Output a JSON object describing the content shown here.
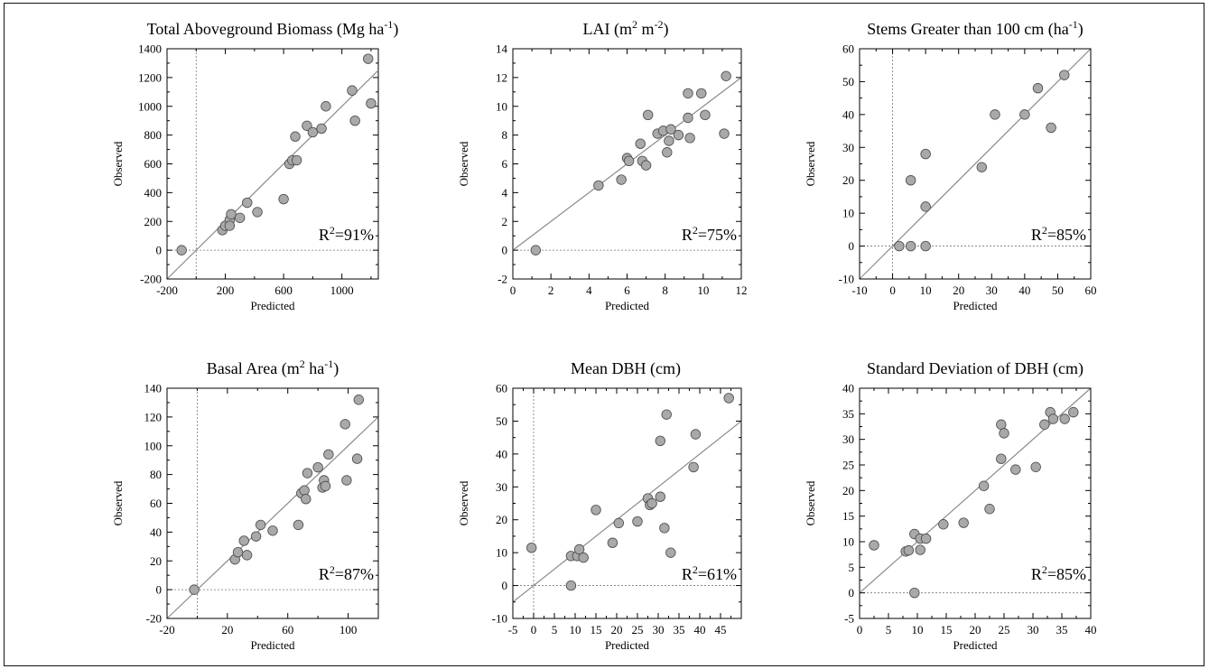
{
  "chart_data": [
    {
      "type": "scatter",
      "title": "Total Aboveground Biomass (Mg ha-1)",
      "title_main": "Total Aboveground Biomass (Mg ha",
      "title_sup": "-1",
      "title_tail": ")",
      "xlabel": "Predicted",
      "ylabel": "Observed",
      "xlim": [
        -200,
        1250
      ],
      "ylim": [
        -200,
        1400
      ],
      "xticks": [
        -200,
        200,
        600,
        1000
      ],
      "yticks": [
        -200,
        0,
        200,
        400,
        600,
        800,
        1000,
        1200,
        1400
      ],
      "r2_prefix": "R",
      "r2_sup": "2",
      "r2_value": "=91%",
      "x": [
        -100,
        180,
        200,
        230,
        240,
        230,
        300,
        350,
        420,
        600,
        640,
        660,
        680,
        690,
        760,
        800,
        860,
        890,
        1070,
        1090,
        1180,
        1200
      ],
      "y": [
        0,
        140,
        170,
        210,
        250,
        170,
        225,
        330,
        265,
        355,
        600,
        625,
        790,
        625,
        865,
        820,
        845,
        1000,
        1110,
        900,
        1330,
        1020
      ]
    },
    {
      "type": "scatter",
      "title": "LAI (m2 m-2)",
      "title_main": "LAI (m",
      "title_sup": "2",
      "title_mid": " m",
      "title_sup2": "-2",
      "title_tail": ")",
      "xlabel": "Predicted",
      "ylabel": "Observed",
      "xlim": [
        0,
        12
      ],
      "ylim": [
        -2,
        14
      ],
      "xticks": [
        0,
        2,
        4,
        6,
        8,
        10,
        12
      ],
      "yticks": [
        -2,
        0,
        2,
        4,
        6,
        8,
        10,
        12,
        14
      ],
      "r2_prefix": "R",
      "r2_sup": "2",
      "r2_value": "=75%",
      "x": [
        1.2,
        4.5,
        5.7,
        6.0,
        6.1,
        6.7,
        6.8,
        7.0,
        7.1,
        7.6,
        7.9,
        8.1,
        8.2,
        8.3,
        8.7,
        9.2,
        9.2,
        9.3,
        9.9,
        10.1,
        11.1,
        11.2
      ],
      "y": [
        0.0,
        4.5,
        4.9,
        6.4,
        6.2,
        7.4,
        6.2,
        5.9,
        9.4,
        8.1,
        8.3,
        6.8,
        7.6,
        8.4,
        8.0,
        9.2,
        10.9,
        7.8,
        10.9,
        9.4,
        8.1,
        12.1
      ]
    },
    {
      "type": "scatter",
      "title": "Stems Greater than 100 cm (ha-1)",
      "title_main": "Stems Greater than 100 cm (ha",
      "title_sup": "-1",
      "title_tail": ")",
      "xlabel": "Predicted",
      "ylabel": "Observed",
      "xlim": [
        -10,
        60
      ],
      "ylim": [
        -10,
        60
      ],
      "xticks": [
        -10,
        0,
        10,
        20,
        30,
        40,
        50,
        60
      ],
      "yticks": [
        -10,
        0,
        10,
        20,
        30,
        40,
        50,
        60
      ],
      "r2_prefix": "R",
      "r2_sup": "2",
      "r2_value": "=85%",
      "x": [
        2,
        5.5,
        5.5,
        10,
        10,
        10,
        27,
        31,
        40,
        44,
        48,
        52
      ],
      "y": [
        0,
        0,
        20,
        28,
        12,
        0,
        24,
        40,
        40,
        48,
        36,
        52
      ]
    },
    {
      "type": "scatter",
      "title": "Basal Area (m2 ha-1)",
      "title_main": "Basal Area  (m",
      "title_sup": "2",
      "title_mid": " ha",
      "title_sup2": "-1",
      "title_tail": ")",
      "xlabel": "Predicted",
      "ylabel": "Observed",
      "xlim": [
        -20,
        120
      ],
      "ylim": [
        -20,
        140
      ],
      "xticks": [
        -20,
        20,
        60,
        100
      ],
      "yticks": [
        -20,
        0,
        20,
        40,
        60,
        80,
        100,
        120,
        140
      ],
      "r2_prefix": "R",
      "r2_sup": "2",
      "r2_value": "=87%",
      "x": [
        -2,
        25,
        27,
        31,
        33,
        39,
        42,
        50,
        67,
        69,
        71,
        72,
        73,
        80,
        83,
        84,
        85,
        87,
        98,
        99,
        106,
        107
      ],
      "y": [
        0,
        21,
        26,
        34,
        24,
        37,
        45,
        41,
        45,
        67,
        69,
        63,
        81,
        85,
        71,
        76,
        72,
        94,
        115,
        76,
        91,
        132
      ]
    },
    {
      "type": "scatter",
      "title": "Mean DBH (cm)",
      "xlabel": "Predicted",
      "ylabel": "Observed",
      "xlim": [
        -5,
        50
      ],
      "ylim": [
        -10,
        60
      ],
      "xticks": [
        -5,
        0,
        5,
        10,
        15,
        20,
        25,
        30,
        35,
        40,
        45
      ],
      "yticks": [
        -10,
        0,
        10,
        20,
        30,
        40,
        50,
        60
      ],
      "r2_prefix": "R",
      "r2_sup": "2",
      "r2_value": "=61%",
      "x": [
        -0.5,
        9,
        9,
        10.5,
        11,
        12,
        15,
        19,
        20.5,
        25,
        27.5,
        28,
        28.5,
        30.5,
        30.5,
        31.5,
        32,
        33,
        38.5,
        39,
        47
      ],
      "y": [
        11.5,
        9,
        0,
        9,
        11,
        8.5,
        23,
        13,
        19,
        19.5,
        26.5,
        24.5,
        25,
        44,
        27,
        17.5,
        52,
        10,
        36,
        46,
        57
      ]
    },
    {
      "type": "scatter",
      "title": "Standard Deviation of DBH (cm)",
      "xlabel": "Predicted",
      "ylabel": "Observed",
      "xlim": [
        0,
        40
      ],
      "ylim": [
        -5,
        40
      ],
      "xticks": [
        0,
        5,
        10,
        15,
        20,
        25,
        30,
        35,
        40
      ],
      "yticks": [
        -5,
        0,
        5,
        10,
        15,
        20,
        25,
        30,
        35,
        40
      ],
      "r2_prefix": "R",
      "r2_sup": "2",
      "r2_value": "=85%",
      "x": [
        2.5,
        8,
        8.5,
        9.5,
        9.5,
        10.5,
        10.5,
        11.5,
        14.5,
        18,
        21.5,
        22.5,
        24.5,
        24.5,
        25,
        27,
        30.5,
        32,
        33,
        33.5,
        35.5,
        37
      ],
      "y": [
        9.3,
        8.1,
        8.3,
        11.5,
        0,
        10.6,
        8.4,
        10.6,
        13.4,
        13.7,
        20.9,
        16.4,
        32.9,
        26.2,
        31.2,
        24.1,
        24.6,
        32.9,
        35.3,
        34,
        34,
        35.3
      ]
    }
  ]
}
